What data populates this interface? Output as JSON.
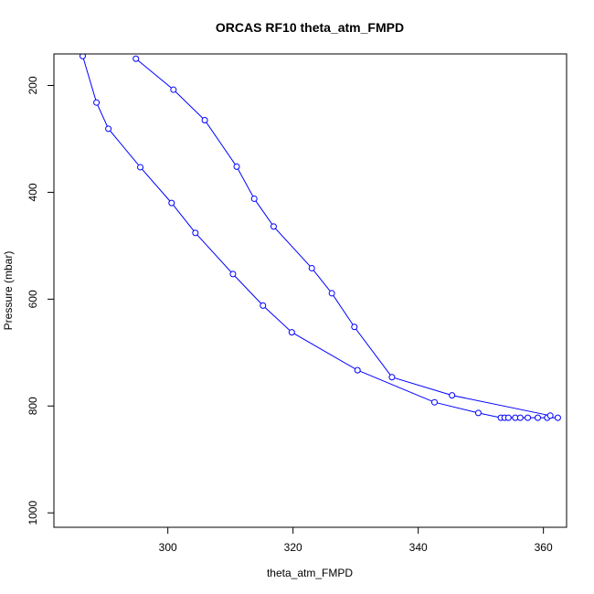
{
  "chart_data": {
    "type": "scatter",
    "title": "ORCAS RF10 theta_atm_FMPD",
    "xlabel": "theta_atm_FMPD",
    "ylabel": "Pressure (mbar)",
    "xlim": [
      281.8,
      363.7
    ],
    "ylim": [
      1027,
      141
    ],
    "y_reversed": true,
    "grid": false,
    "legend": "none",
    "x_ticks": [
      300,
      320,
      340,
      360
    ],
    "y_ticks": [
      200,
      400,
      600,
      800,
      1000
    ],
    "line_color": "#0000ff",
    "marker": "open-circle",
    "series": [
      {
        "x": [
          286.4,
          288.6,
          290.5,
          295.6,
          300.6,
          304.4,
          310.4,
          315.2,
          319.8,
          330.3,
          342.6,
          349.6,
          353.2,
          353.8,
          354.4,
          355.5,
          356.3,
          357.5,
          359.1,
          360.6,
          362.3
        ],
        "y": [
          145,
          232,
          281,
          353,
          420,
          476,
          553,
          612,
          662,
          733,
          793,
          813,
          822,
          822,
          822,
          822,
          822,
          822,
          822,
          822,
          822
        ]
      },
      {
        "x": [
          294.9,
          300.9,
          305.9,
          311.0,
          313.8,
          316.9,
          323.0,
          326.2,
          329.8,
          335.8,
          345.4,
          361.1
        ],
        "y": [
          150,
          208,
          265,
          352,
          412,
          464,
          542,
          589,
          652,
          746,
          780,
          818
        ]
      }
    ]
  }
}
